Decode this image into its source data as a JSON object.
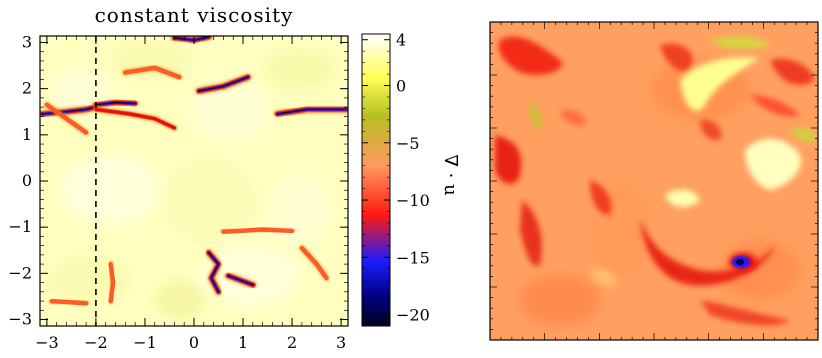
{
  "chart_data": [
    {
      "type": "heatmap",
      "title": "constant viscosity",
      "xlabel": "",
      "ylabel": "",
      "xlim": [
        -3.14,
        3.14
      ],
      "ylim": [
        -3.14,
        3.14
      ],
      "x_ticks": [
        "−3",
        "−2",
        "−1",
        "0",
        "1",
        "2",
        "3"
      ],
      "x_tick_values": [
        -3,
        -2,
        -1,
        0,
        1,
        2,
        3
      ],
      "y_ticks": [
        "−3",
        "−2",
        "−1",
        "0",
        "1",
        "2",
        "3"
      ],
      "y_tick_values": [
        -3,
        -2,
        -1,
        0,
        1,
        2,
        3
      ],
      "marker_line": {
        "x": -2,
        "style": "dashed"
      },
      "colorbar": {
        "label": "∇ · u",
        "range": [
          -21,
          4.5
        ],
        "ticks": [
          "4",
          "0",
          "−5",
          "−10",
          "−15",
          "−20"
        ],
        "tick_values": [
          4,
          0,
          -5,
          -10,
          -15,
          -20
        ],
        "colors": [
          "#000020",
          "#1c1cff",
          "#ff1a10",
          "#ff9a60",
          "#b7bf21",
          "#ffff55",
          "#ffffff"
        ]
      },
      "features": [
        {
          "kind": "shock-front",
          "x": [
            -3.1,
            -2.6,
            -2.2,
            -2.0
          ],
          "y": [
            1.45,
            1.5,
            1.55,
            1.6
          ],
          "min_value": -20
        },
        {
          "kind": "shock-front",
          "x": [
            -2.0,
            -1.6,
            -1.2
          ],
          "y": [
            1.65,
            1.7,
            1.68
          ],
          "min_value": -20
        },
        {
          "kind": "shock-front",
          "x": [
            -2.0,
            -1.3,
            -0.8,
            -0.4
          ],
          "y": [
            1.55,
            1.45,
            1.35,
            1.15
          ],
          "min_value": -12
        },
        {
          "kind": "shock-front",
          "x": [
            0.1,
            0.6,
            1.1
          ],
          "y": [
            1.95,
            2.05,
            2.25
          ],
          "min_value": -15
        },
        {
          "kind": "shock-front",
          "x": [
            -1.4,
            -0.8,
            -0.3
          ],
          "y": [
            2.35,
            2.45,
            2.25
          ],
          "min_value": -8
        },
        {
          "kind": "shock-front",
          "x": [
            1.7,
            2.3,
            3.1
          ],
          "y": [
            1.45,
            1.55,
            1.55
          ],
          "min_value": -20
        },
        {
          "kind": "shock-front",
          "x": [
            -3.0,
            -2.6,
            -2.2
          ],
          "y": [
            1.65,
            1.35,
            1.05
          ],
          "min_value": -9
        },
        {
          "kind": "shock-front",
          "x": [
            -0.4,
            0.0,
            0.3
          ],
          "y": [
            3.1,
            3.05,
            3.12
          ],
          "min_value": -15
        },
        {
          "kind": "shock-front",
          "x": [
            0.3,
            0.5,
            0.35,
            0.5
          ],
          "y": [
            -1.55,
            -1.8,
            -2.1,
            -2.4
          ],
          "min_value": -18
        },
        {
          "kind": "shock-front",
          "x": [
            0.7,
            0.95,
            1.2
          ],
          "y": [
            -2.05,
            -2.15,
            -2.25
          ],
          "min_value": -16
        },
        {
          "kind": "shock-front",
          "x": [
            0.6,
            1.4,
            2.0
          ],
          "y": [
            -1.1,
            -1.05,
            -1.08
          ],
          "min_value": -8
        },
        {
          "kind": "shock-front",
          "x": [
            2.2,
            2.5,
            2.7
          ],
          "y": [
            -1.45,
            -1.8,
            -2.1
          ],
          "min_value": -8
        },
        {
          "kind": "shock-front",
          "x": [
            -1.7,
            -1.65,
            -1.7
          ],
          "y": [
            -1.8,
            -2.2,
            -2.6
          ],
          "min_value": -7
        },
        {
          "kind": "shock-front",
          "x": [
            -2.9,
            -2.6,
            -2.2
          ],
          "y": [
            -2.6,
            -2.62,
            -2.65
          ],
          "min_value": -6
        }
      ]
    },
    {
      "type": "heatmap",
      "title": "",
      "features": [
        {
          "kind": "strong-compression",
          "x": 0.8,
          "y": -0.6,
          "min_value": -20
        }
      ]
    }
  ]
}
